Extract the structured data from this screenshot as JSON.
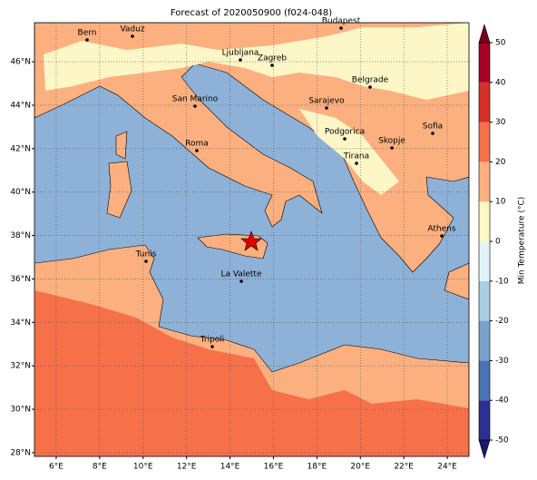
{
  "map_data": {
    "title": "Forecast of 2020050900 (f024-048)",
    "xlim": [
      5,
      25
    ],
    "ylim": [
      27.83,
      47.8
    ],
    "xticks": [
      {
        "value": 6,
        "label": "6°E"
      },
      {
        "value": 8,
        "label": "8°E"
      },
      {
        "value": 10,
        "label": "10°E"
      },
      {
        "value": 12,
        "label": "12°E"
      },
      {
        "value": 14,
        "label": "14°E"
      },
      {
        "value": 16,
        "label": "16°E"
      },
      {
        "value": 18,
        "label": "18°E"
      },
      {
        "value": 20,
        "label": "20°E"
      },
      {
        "value": 22,
        "label": "22°E"
      },
      {
        "value": 24,
        "label": "24°E"
      }
    ],
    "yticks": [
      {
        "value": 28,
        "label": "28°N"
      },
      {
        "value": 30,
        "label": "30°N"
      },
      {
        "value": 32,
        "label": "32°N"
      },
      {
        "value": 34,
        "label": "34°N"
      },
      {
        "value": 36,
        "label": "36°N"
      },
      {
        "value": 38,
        "label": "38°N"
      },
      {
        "value": 40,
        "label": "40°N"
      },
      {
        "value": 42,
        "label": "42°N"
      },
      {
        "value": 44,
        "label": "44°N"
      },
      {
        "value": 46,
        "label": "46°N"
      }
    ],
    "grid": true,
    "cities": [
      "Bern",
      "Vaduz",
      "Budapest",
      "Ljubljana",
      "Zagreb",
      "Belgrade",
      "San Marino",
      "Sarajevo",
      "Sofia",
      "Podgorica",
      "Skopje",
      "Roma",
      "Tirana",
      "Athens",
      "Tunis",
      "La Valette",
      "Tripoli"
    ],
    "colorbar": {
      "label": "Min Temperature (°C)",
      "ticks": [
        -50,
        -40,
        -30,
        -20,
        -10,
        0,
        10,
        20,
        30,
        40,
        50
      ],
      "colors": [
        "#2b3192",
        "#4a73b3",
        "#7aa3cc",
        "#a9cfe5",
        "#e2f3f9",
        "#fdf6c7",
        "#fcb07f",
        "#f6704a",
        "#d73027",
        "#a50026"
      ],
      "under_color": "#1a1a6e",
      "over_color": "#7a0020"
    }
  }
}
